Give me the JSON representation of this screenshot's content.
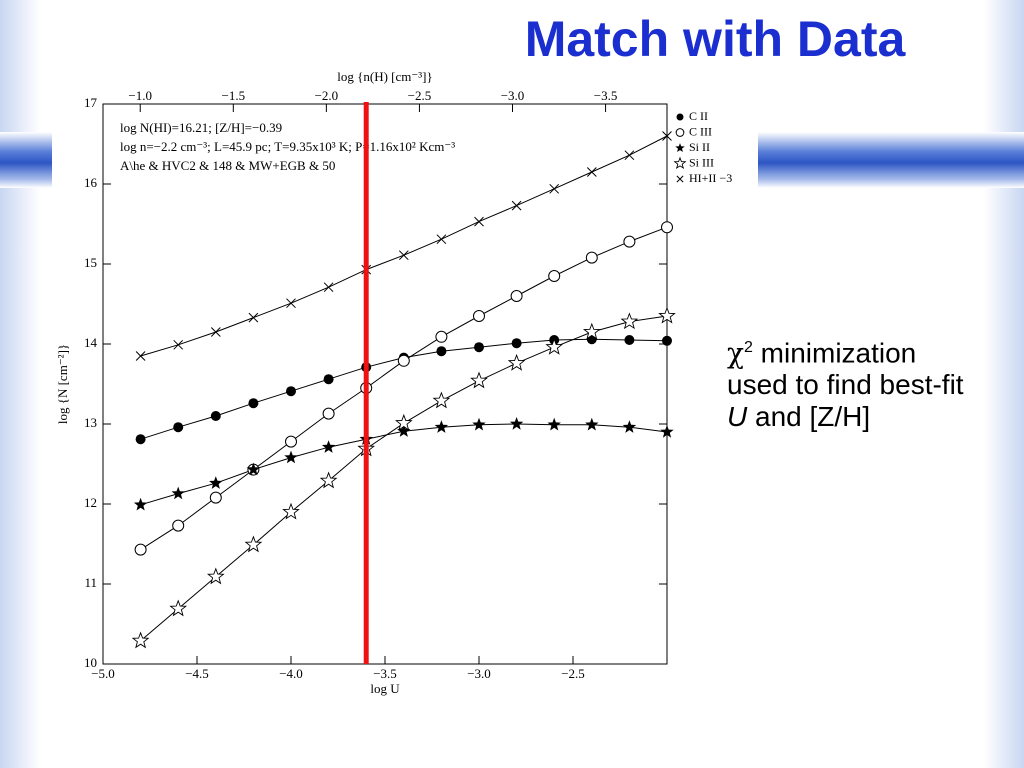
{
  "title": "Match with Data",
  "side_text": [
    "χ",
    "2",
    " minimization used to find best-fit ",
    "U",
    " and [Z/H]"
  ],
  "chart_data": {
    "type": "line",
    "x_label": "log U",
    "y_label": "log {N [cm⁻²]}",
    "x2_label": "log {n(H) [cm⁻³]}",
    "annotations": [
      "log N(HI)=16.21; [Z/H]=−0.39",
      "log n=−2.2 cm⁻³; L=45.9 pc; T=9.35x10³ K; P=1.16x10² Kcm⁻³",
      "A\\he & HVC2 & 148 & MW+EGB & 50"
    ],
    "xlim": [
      -5,
      -2
    ],
    "xticks": [
      {
        "value": -5,
        "label": "−5.0"
      },
      {
        "value": -4.5,
        "label": "−4.5"
      },
      {
        "value": -4,
        "label": "−4.0"
      },
      {
        "value": -3.5,
        "label": "−3.5"
      },
      {
        "value": -3,
        "label": "−3.0"
      },
      {
        "value": -2.5,
        "label": "−2.5"
      }
    ],
    "x2lim": [
      -0.8,
      -3.83
    ],
    "x2ticks": [
      {
        "value": -1,
        "label": "−1.0"
      },
      {
        "value": -1.5,
        "label": "−1.5"
      },
      {
        "value": -2,
        "label": "−2.0"
      },
      {
        "value": -2.5,
        "label": "−2.5"
      },
      {
        "value": -3,
        "label": "−3.0"
      },
      {
        "value": -3.5,
        "label": "−3.5"
      }
    ],
    "ylim": [
      10,
      17
    ],
    "yticks": [
      10,
      11,
      12,
      13,
      14,
      15,
      16,
      17
    ],
    "x": [
      -4.8,
      -4.6,
      -4.4,
      -4.2,
      -4.0,
      -3.8,
      -3.6,
      -3.4,
      -3.2,
      -3.0,
      -2.8,
      -2.6,
      -2.4,
      -2.2,
      -2.0
    ],
    "series": [
      {
        "name": "C II",
        "marker": "filled-circle",
        "color": "#000000",
        "values": [
          12.81,
          12.96,
          13.1,
          13.26,
          13.41,
          13.56,
          13.71,
          13.83,
          13.91,
          13.96,
          14.01,
          14.05,
          14.06,
          14.05,
          14.04
        ]
      },
      {
        "name": "C III",
        "marker": "open-circle",
        "color": "#000000",
        "values": [
          11.43,
          11.73,
          12.08,
          12.43,
          12.78,
          13.13,
          13.45,
          13.79,
          14.09,
          14.35,
          14.6,
          14.85,
          15.08,
          15.28,
          15.46
        ]
      },
      {
        "name": "Si II",
        "marker": "filled-star",
        "color": "#000000",
        "values": [
          11.99,
          12.13,
          12.26,
          12.43,
          12.58,
          12.71,
          12.81,
          12.91,
          12.96,
          12.99,
          13.0,
          12.99,
          12.99,
          12.96,
          12.9
        ]
      },
      {
        "name": "Si III",
        "marker": "open-star",
        "color": "#000000",
        "values": [
          10.29,
          10.69,
          11.09,
          11.49,
          11.9,
          12.29,
          12.69,
          13.01,
          13.29,
          13.54,
          13.76,
          13.96,
          14.15,
          14.28,
          14.35
        ]
      },
      {
        "name": "HI+II −3",
        "marker": "cross",
        "color": "#000000",
        "values": [
          13.85,
          13.99,
          14.15,
          14.33,
          14.51,
          14.71,
          14.93,
          15.11,
          15.31,
          15.53,
          15.73,
          15.94,
          16.15,
          16.36,
          16.6
        ]
      }
    ],
    "vline": {
      "x": -3.6,
      "color": "#ee1111"
    }
  }
}
